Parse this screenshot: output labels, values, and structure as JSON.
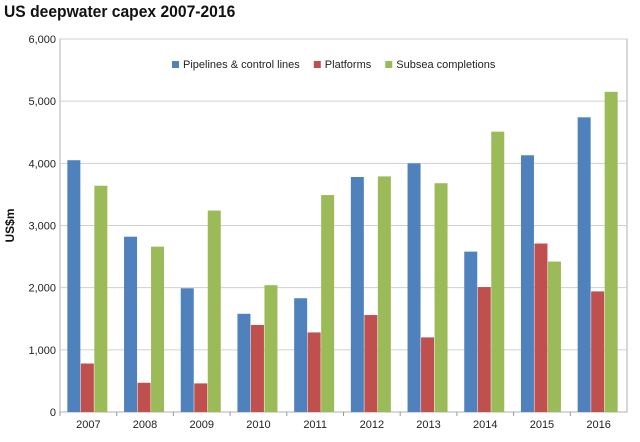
{
  "chart_data": {
    "type": "bar",
    "title": "US deepwater capex 2007-2016",
    "xlabel": "",
    "ylabel": "US$m",
    "ylim": [
      0,
      6000
    ],
    "yticks": [
      "0",
      "1,000",
      "2,000",
      "3,000",
      "4,000",
      "5,000",
      "6,000"
    ],
    "categories": [
      "2007",
      "2008",
      "2009",
      "2010",
      "2011",
      "2012",
      "2013",
      "2014",
      "2015",
      "2016"
    ],
    "series": [
      {
        "name": "Pipelines & control lines",
        "color": "#4F81BD",
        "values": [
          4050,
          2820,
          1990,
          1580,
          1830,
          3780,
          4000,
          2580,
          4130,
          4740
        ]
      },
      {
        "name": "Platforms",
        "color": "#C0504D",
        "values": [
          780,
          470,
          460,
          1400,
          1280,
          1560,
          1200,
          2010,
          2710,
          1940
        ]
      },
      {
        "name": "Subsea completions",
        "color": "#9BBB59",
        "values": [
          3640,
          2660,
          3240,
          2040,
          3490,
          3790,
          3680,
          4510,
          2420,
          5150
        ]
      }
    ],
    "grid": true,
    "legend": "top-center"
  }
}
